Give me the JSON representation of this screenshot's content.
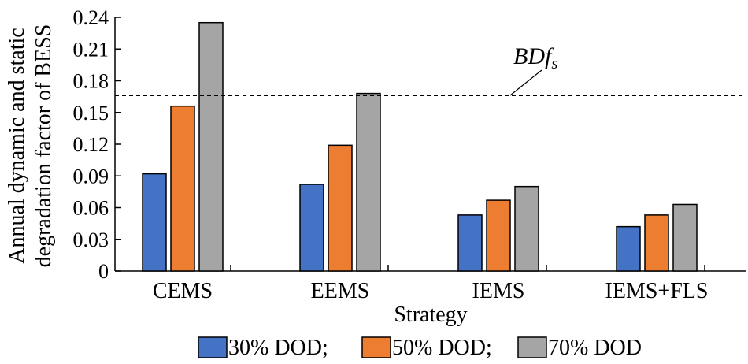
{
  "chart_data": {
    "type": "bar",
    "xlabel": "Strategy",
    "ylabel_lines": [
      "Annual dynamic and static",
      "degradation factor of BESS"
    ],
    "categories": [
      "CEMS",
      "EEMS",
      "IEMS",
      "IEMS+FLS"
    ],
    "series": [
      {
        "name": "30% DOD;",
        "color": "#4472C4",
        "values": [
          0.092,
          0.082,
          0.053,
          0.042
        ]
      },
      {
        "name": "50% DOD;",
        "color": "#ED7D31",
        "values": [
          0.156,
          0.119,
          0.067,
          0.053
        ]
      },
      {
        "name": "70% DOD",
        "color": "#A5A5A5",
        "values": [
          0.235,
          0.168,
          0.08,
          0.063
        ]
      }
    ],
    "ylim": [
      0,
      0.24
    ],
    "yticks": [
      "0",
      "0.03",
      "0.06",
      "0.09",
      "0.12",
      "0.15",
      "0.18",
      "0.21",
      "0.24"
    ],
    "threshold": {
      "label_main": "BDf",
      "label_sub": "s",
      "value": 0.166,
      "style": "dashed"
    },
    "grid": false,
    "legend_position": "bottom"
  }
}
